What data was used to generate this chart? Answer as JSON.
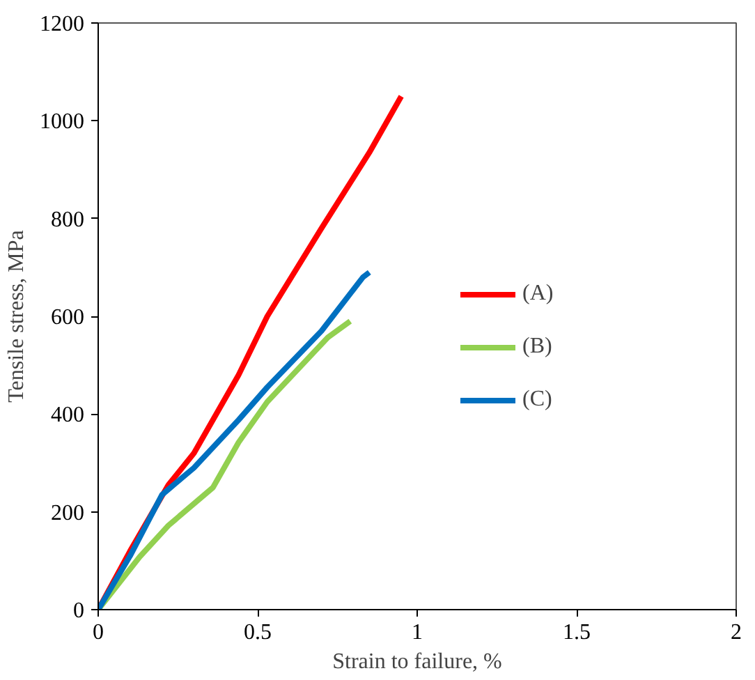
{
  "chart_data": {
    "type": "line",
    "xlabel": "Strain to failure, %",
    "ylabel": "Tensile stress, MPa",
    "xlim": [
      0,
      2
    ],
    "ylim": [
      0,
      1200
    ],
    "xticks": [
      0,
      0.5,
      1,
      1.5,
      2
    ],
    "yticks": [
      0,
      200,
      400,
      600,
      800,
      1000,
      1200
    ],
    "grid": false,
    "legend": "right",
    "marker": "none",
    "line_style": "solid",
    "series": [
      {
        "name": "(A)",
        "color": "#ff0000",
        "x": [
          0,
          0.1,
          0.22,
          0.3,
          0.44,
          0.53,
          0.7,
          0.85,
          0.95
        ],
        "values": [
          0,
          120,
          255,
          320,
          480,
          600,
          780,
          935,
          1050
        ]
      },
      {
        "name": "(B)",
        "color": "#92d050",
        "x": [
          0,
          0.13,
          0.22,
          0.36,
          0.44,
          0.53,
          0.72,
          0.79
        ],
        "values": [
          0,
          108,
          172,
          250,
          342,
          425,
          557,
          590
        ]
      },
      {
        "name": "(C)",
        "color": "#0070c0",
        "x": [
          0,
          0.1,
          0.2,
          0.22,
          0.3,
          0.44,
          0.53,
          0.7,
          0.83,
          0.85
        ],
        "values": [
          0,
          110,
          235,
          246,
          290,
          388,
          455,
          570,
          680,
          690
        ]
      }
    ]
  }
}
